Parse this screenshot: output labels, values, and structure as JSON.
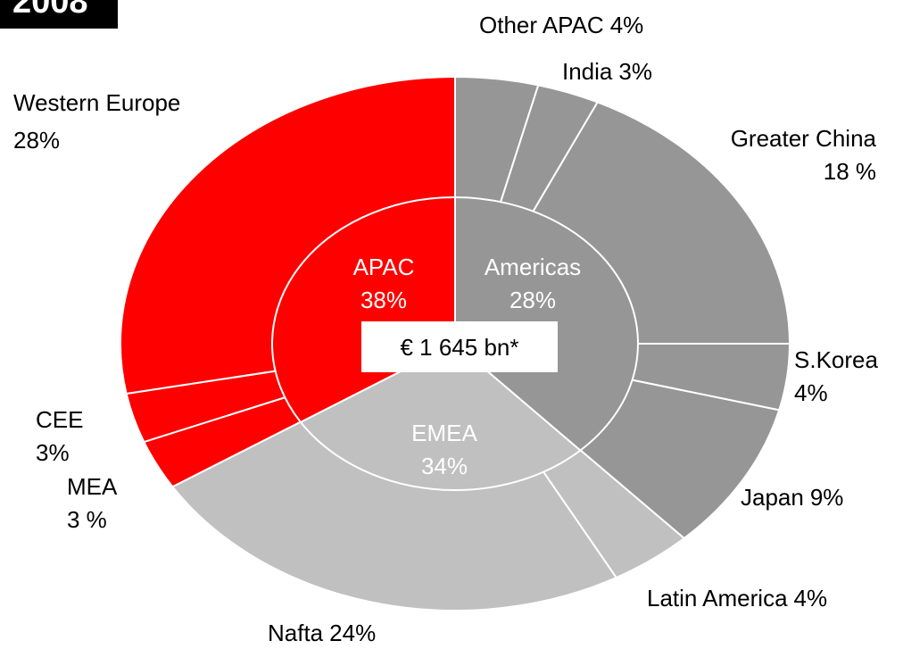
{
  "chart_data": {
    "type": "pie",
    "title": "2008",
    "center_label": "€ 1 645 bn*",
    "rings": [
      {
        "labels": [
          "APAC",
          "Americas",
          "EMEA"
        ],
        "values": [
          38,
          28,
          34
        ],
        "value_labels": [
          "38%",
          "28%",
          "34%"
        ],
        "colors": [
          "#969696",
          "#c0c0c0",
          "#ff0000"
        ]
      },
      {
        "labels": [
          "Other APAC",
          "India",
          "Greater China",
          "S.Korea",
          "Japan",
          "Latin America",
          "Nafta",
          "MEA",
          "CEE",
          "Western Europe"
        ],
        "values": [
          4,
          3,
          18,
          4,
          9,
          4,
          24,
          3,
          3,
          28
        ],
        "value_labels": [
          "4%",
          "3%",
          "18 %",
          "4%",
          "9%",
          "4%",
          "24%",
          "3 %",
          "3%",
          "28%"
        ],
        "colors": [
          "#969696",
          "#969696",
          "#969696",
          "#969696",
          "#969696",
          "#c0c0c0",
          "#c0c0c0",
          "#ff0000",
          "#ff0000",
          "#ff0000"
        ]
      }
    ]
  }
}
